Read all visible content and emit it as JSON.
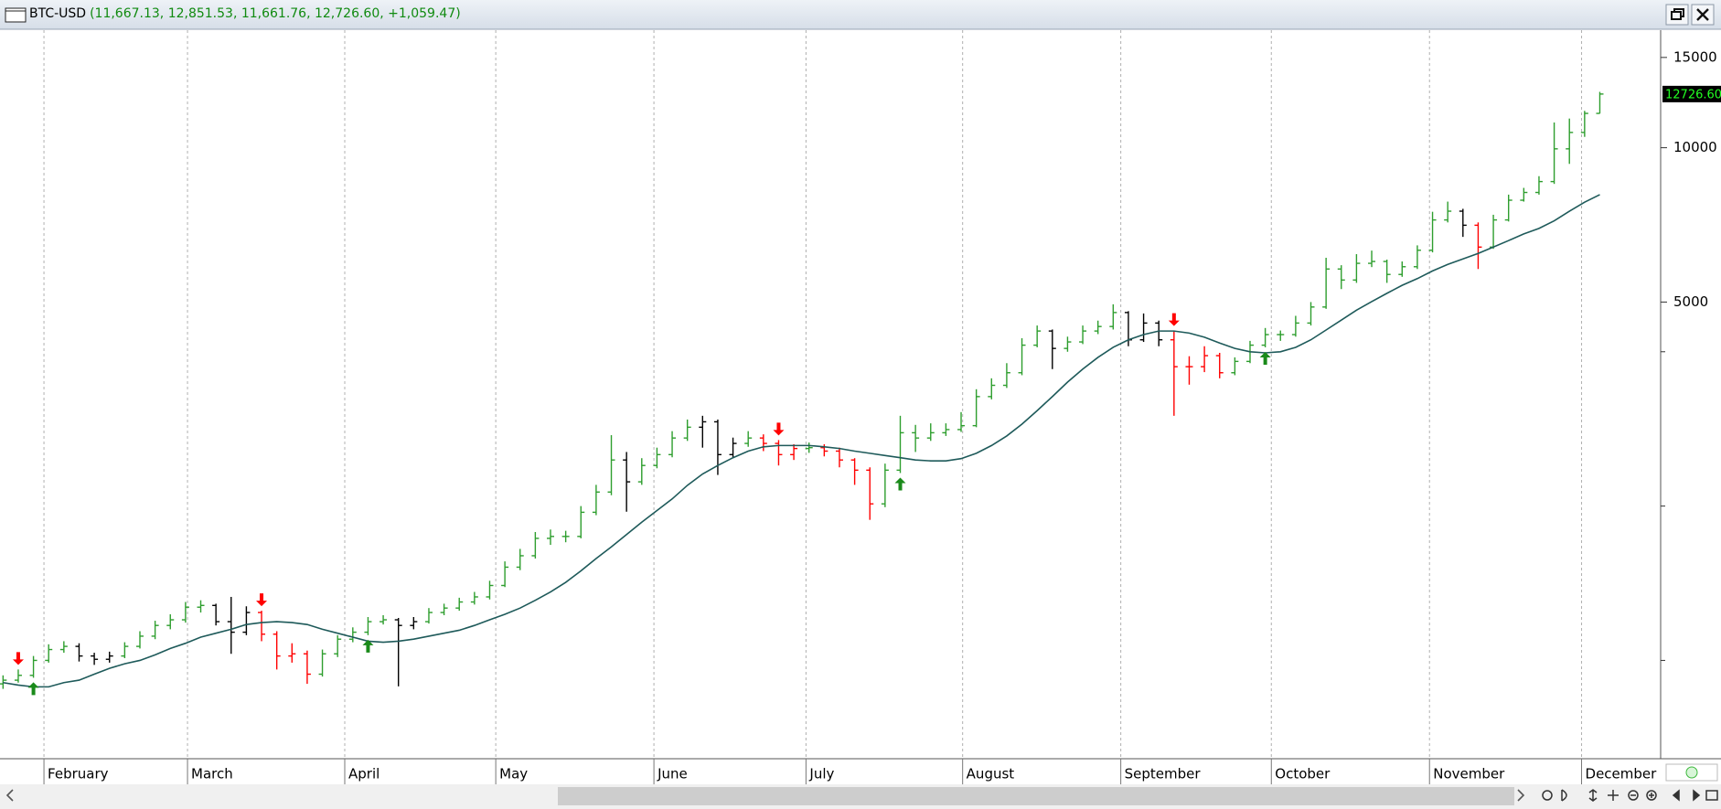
{
  "chart_data": {
    "type": "ohlc",
    "title": "BTC-USD",
    "subtitle": "(11,667.13, 12,851.53, 11,661.76, 12,726.60, +1,059.47)",
    "open": [
      900,
      915,
      935,
      1000,
      1050,
      1065,
      1020,
      1005,
      1020,
      1065,
      1115,
      1170,
      1200,
      1270,
      1280,
      1190,
      1135,
      1240,
      1125,
      1020,
      1030,
      940,
      1030,
      1100,
      1135,
      1190,
      1200,
      1170,
      1190,
      1240,
      1265,
      1300,
      1330,
      1400,
      1520,
      1600,
      1730,
      1745,
      1745,
      1945,
      2130,
      2460,
      2230,
      2400,
      2520,
      2715,
      2850,
      2920,
      2520,
      2650,
      2715,
      2650,
      2520,
      2590,
      2600,
      2560,
      2460,
      2350,
      2020,
      2350,
      2780,
      2715,
      2780,
      2820,
      2870,
      3270,
      3440,
      3640,
      4120,
      4390,
      4060,
      4180,
      4390,
      4480,
      4770,
      4220,
      4550,
      4220,
      3740,
      3740,
      3930,
      3640,
      3830,
      4120,
      4320,
      4320,
      4550,
      4890,
      5800,
      5520,
      5950,
      6000,
      5660,
      5860,
      6310,
      7230,
      7520,
      7060,
      6400,
      7230,
      7900,
      8180,
      8590,
      9950,
      10710,
      11667.13
    ],
    "high": [
      935,
      960,
      1020,
      1075,
      1090,
      1080,
      1035,
      1040,
      1085,
      1140,
      1195,
      1230,
      1300,
      1310,
      1290,
      1330,
      1275,
      1250,
      1140,
      1080,
      1045,
      1050,
      1120,
      1160,
      1215,
      1225,
      1210,
      1215,
      1265,
      1290,
      1325,
      1360,
      1430,
      1560,
      1650,
      1780,
      1800,
      1790,
      2000,
      2200,
      2750,
      2550,
      2480,
      2600,
      2800,
      2950,
      3000,
      2950,
      2720,
      2800,
      2760,
      2690,
      2640,
      2660,
      2640,
      2600,
      2480,
      2380,
      2420,
      3000,
      2880,
      2900,
      2900,
      3050,
      3380,
      3550,
      3800,
      4250,
      4500,
      4420,
      4280,
      4500,
      4600,
      4950,
      4800,
      4750,
      4600,
      4400,
      3920,
      4100,
      3980,
      3900,
      4200,
      4450,
      4400,
      4700,
      5000,
      6100,
      5900,
      6200,
      6300,
      6050,
      6000,
      6450,
      7500,
      7850,
      7600,
      7150,
      7400,
      8100,
      8350,
      8800,
      11200,
      11400,
      11800,
      12851.53
    ],
    "low": [
      880,
      905,
      925,
      990,
      1035,
      995,
      980,
      990,
      1010,
      1055,
      1100,
      1150,
      1185,
      1240,
      1170,
      1030,
      1120,
      1090,
      960,
      990,
      900,
      930,
      1015,
      1085,
      1120,
      1175,
      890,
      1150,
      1180,
      1225,
      1250,
      1285,
      1315,
      1390,
      1500,
      1580,
      1680,
      1700,
      1730,
      1920,
      2100,
      1950,
      2200,
      2370,
      2490,
      2680,
      2600,
      2300,
      2480,
      2610,
      2560,
      2400,
      2460,
      2540,
      2500,
      2380,
      2200,
      1880,
      1990,
      2320,
      2550,
      2680,
      2740,
      2790,
      2850,
      3230,
      3400,
      3600,
      4080,
      3700,
      4000,
      4140,
      4330,
      4420,
      4100,
      4180,
      4100,
      3000,
      3450,
      3650,
      3550,
      3600,
      3800,
      4080,
      4200,
      4280,
      4500,
      4850,
      5300,
      5450,
      5850,
      5450,
      5600,
      5800,
      6250,
      7150,
      6700,
      5800,
      6350,
      7180,
      7850,
      8100,
      8500,
      9300,
      10500,
      11661.76
    ],
    "close": [
      915,
      935,
      1000,
      1050,
      1065,
      1020,
      1005,
      1020,
      1065,
      1115,
      1170,
      1200,
      1270,
      1280,
      1190,
      1135,
      1240,
      1125,
      1020,
      1030,
      940,
      1030,
      1100,
      1135,
      1190,
      1200,
      1170,
      1190,
      1240,
      1265,
      1300,
      1330,
      1400,
      1520,
      1600,
      1730,
      1745,
      1745,
      1945,
      2130,
      2460,
      2230,
      2400,
      2520,
      2715,
      2850,
      2920,
      2520,
      2650,
      2715,
      2650,
      2520,
      2590,
      2600,
      2560,
      2460,
      2350,
      2020,
      2350,
      2780,
      2715,
      2780,
      2820,
      2870,
      3270,
      3440,
      3640,
      4120,
      4390,
      4060,
      4180,
      4390,
      4480,
      4770,
      4220,
      4550,
      4220,
      3740,
      3740,
      3930,
      3640,
      3830,
      4120,
      4320,
      4320,
      4550,
      4890,
      5800,
      5520,
      5950,
      6000,
      5660,
      5860,
      6310,
      7230,
      7520,
      7060,
      6400,
      7230,
      7900,
      8180,
      8590,
      9950,
      10710,
      11667.13,
      12726.6
    ],
    "bar_colors": [
      "#2e9e2e",
      "#2e9e2e",
      "#2e9e2e",
      "#2e9e2e",
      "#2e9e2e",
      "#000000",
      "#000000",
      "#000000",
      "#2e9e2e",
      "#2e9e2e",
      "#2e9e2e",
      "#2e9e2e",
      "#2e9e2e",
      "#2e9e2e",
      "#000000",
      "#000000",
      "#000000",
      "#ff0000",
      "#ff0000",
      "#ff0000",
      "#ff0000",
      "#2e9e2e",
      "#2e9e2e",
      "#2e9e2e",
      "#2e9e2e",
      "#2e9e2e",
      "#000000",
      "#000000",
      "#2e9e2e",
      "#2e9e2e",
      "#2e9e2e",
      "#2e9e2e",
      "#2e9e2e",
      "#2e9e2e",
      "#2e9e2e",
      "#2e9e2e",
      "#2e9e2e",
      "#2e9e2e",
      "#2e9e2e",
      "#2e9e2e",
      "#2e9e2e",
      "#000000",
      "#2e9e2e",
      "#2e9e2e",
      "#2e9e2e",
      "#2e9e2e",
      "#000000",
      "#000000",
      "#000000",
      "#2e9e2e",
      "#ff0000",
      "#ff0000",
      "#ff0000",
      "#2e9e2e",
      "#ff0000",
      "#ff0000",
      "#ff0000",
      "#ff0000",
      "#2e9e2e",
      "#2e9e2e",
      "#2e9e2e",
      "#2e9e2e",
      "#2e9e2e",
      "#2e9e2e",
      "#2e9e2e",
      "#2e9e2e",
      "#2e9e2e",
      "#2e9e2e",
      "#2e9e2e",
      "#000000",
      "#2e9e2e",
      "#2e9e2e",
      "#2e9e2e",
      "#2e9e2e",
      "#000000",
      "#000000",
      "#000000",
      "#ff0000",
      "#ff0000",
      "#ff0000",
      "#ff0000",
      "#2e9e2e",
      "#2e9e2e",
      "#2e9e2e",
      "#2e9e2e",
      "#2e9e2e",
      "#2e9e2e",
      "#2e9e2e",
      "#2e9e2e",
      "#2e9e2e",
      "#2e9e2e",
      "#2e9e2e",
      "#2e9e2e",
      "#2e9e2e",
      "#2e9e2e",
      "#2e9e2e",
      "#000000",
      "#ff0000",
      "#2e9e2e",
      "#2e9e2e",
      "#2e9e2e",
      "#2e9e2e",
      "#2e9e2e",
      "#2e9e2e",
      "#2e9e2e",
      "#2e9e2e"
    ],
    "moving_average": {
      "color": "#1e5a5a",
      "values": [
        905,
        895,
        888,
        888,
        905,
        915,
        940,
        965,
        985,
        1000,
        1025,
        1055,
        1080,
        1110,
        1130,
        1150,
        1175,
        1185,
        1190,
        1185,
        1175,
        1150,
        1130,
        1110,
        1090,
        1085,
        1090,
        1100,
        1115,
        1130,
        1145,
        1170,
        1200,
        1230,
        1265,
        1310,
        1360,
        1420,
        1495,
        1580,
        1665,
        1760,
        1860,
        1960,
        2065,
        2195,
        2310,
        2400,
        2485,
        2560,
        2610,
        2625,
        2625,
        2625,
        2610,
        2590,
        2560,
        2535,
        2510,
        2485,
        2460,
        2450,
        2450,
        2475,
        2535,
        2625,
        2740,
        2890,
        3070,
        3270,
        3490,
        3700,
        3900,
        4080,
        4220,
        4320,
        4390,
        4390,
        4350,
        4270,
        4160,
        4060,
        4000,
        3980,
        4000,
        4080,
        4220,
        4410,
        4610,
        4820,
        5010,
        5200,
        5390,
        5555,
        5750,
        5920,
        6070,
        6220,
        6400,
        6590,
        6790,
        6960,
        7200,
        7520,
        7830,
        8100
      ]
    },
    "signals": [
      {
        "index": 1,
        "color": "#ff0000"
      },
      {
        "index": 2,
        "color": "#1a8a1a"
      },
      {
        "index": 17,
        "color": "#ff0000"
      },
      {
        "index": 24,
        "color": "#1a8a1a"
      },
      {
        "index": 51,
        "color": "#ff0000"
      },
      {
        "index": 59,
        "color": "#1a8a1a"
      },
      {
        "index": 77,
        "color": "#ff0000"
      },
      {
        "index": 83,
        "color": "#1a8a1a"
      }
    ],
    "last_price_label": "12726.60",
    "log_scale": true,
    "ylim": [
      643,
      16955
    ],
    "yticks": [
      5000,
      10000,
      15000
    ],
    "minor_yticks": [
      1000,
      2000,
      4000
    ],
    "xlim": [
      -0.2,
      109
    ],
    "xticks": [
      {
        "value": 2.69,
        "label": "February"
      },
      {
        "value": 12.13,
        "label": "March"
      },
      {
        "value": 22.47,
        "label": "April"
      },
      {
        "value": 32.4,
        "label": "May"
      },
      {
        "value": 42.8,
        "label": "June"
      },
      {
        "value": 52.8,
        "label": "July"
      },
      {
        "value": 63.1,
        "label": "August"
      },
      {
        "value": 73.5,
        "label": "September"
      },
      {
        "value": 83.4,
        "label": "October"
      },
      {
        "value": 93.8,
        "label": "November"
      },
      {
        "value": 103.8,
        "label": "December"
      }
    ],
    "grid": true
  }
}
